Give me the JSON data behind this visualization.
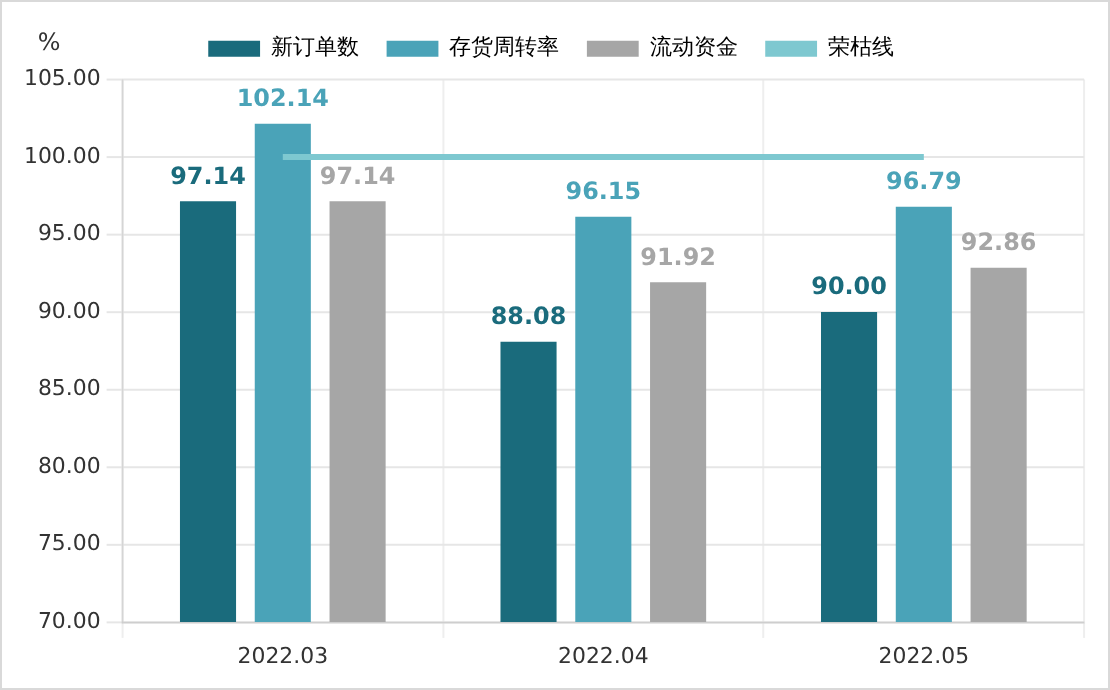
{
  "chart_data": {
    "type": "bar",
    "ylabel": "%",
    "categories": [
      "2022.03",
      "2022.04",
      "2022.05"
    ],
    "series": [
      {
        "name": "新订单数",
        "color": "#1a6b7c",
        "values": [
          97.14,
          88.08,
          90.0
        ],
        "value_labels": [
          "97.14",
          "88.08",
          "90.00"
        ]
      },
      {
        "name": "存货周转率",
        "color": "#4aa3b8",
        "values": [
          102.14,
          96.15,
          96.79
        ],
        "value_labels": [
          "102.14",
          "96.15",
          "96.79"
        ]
      },
      {
        "name": "流动资金",
        "color": "#a6a6a6",
        "values": [
          97.14,
          91.92,
          92.86
        ],
        "value_labels": [
          "97.14",
          "91.92",
          "92.86"
        ]
      },
      {
        "name": "荣枯线",
        "type": "line",
        "color": "#7ec8d0",
        "values": [
          100,
          100,
          100
        ]
      }
    ],
    "ylim": [
      70,
      105
    ],
    "yticks": [
      {
        "value": 70,
        "label": "70.00"
      },
      {
        "value": 75,
        "label": "75.00"
      },
      {
        "value": 80,
        "label": "80.00"
      },
      {
        "value": 85,
        "label": "85.00"
      },
      {
        "value": 90,
        "label": "90.00"
      },
      {
        "value": 95,
        "label": "95.00"
      },
      {
        "value": 100,
        "label": "100.00"
      },
      {
        "value": 105,
        "label": "105.00"
      }
    ],
    "grid": true,
    "legend": "top",
    "marker": "none",
    "line_style": "solid"
  }
}
